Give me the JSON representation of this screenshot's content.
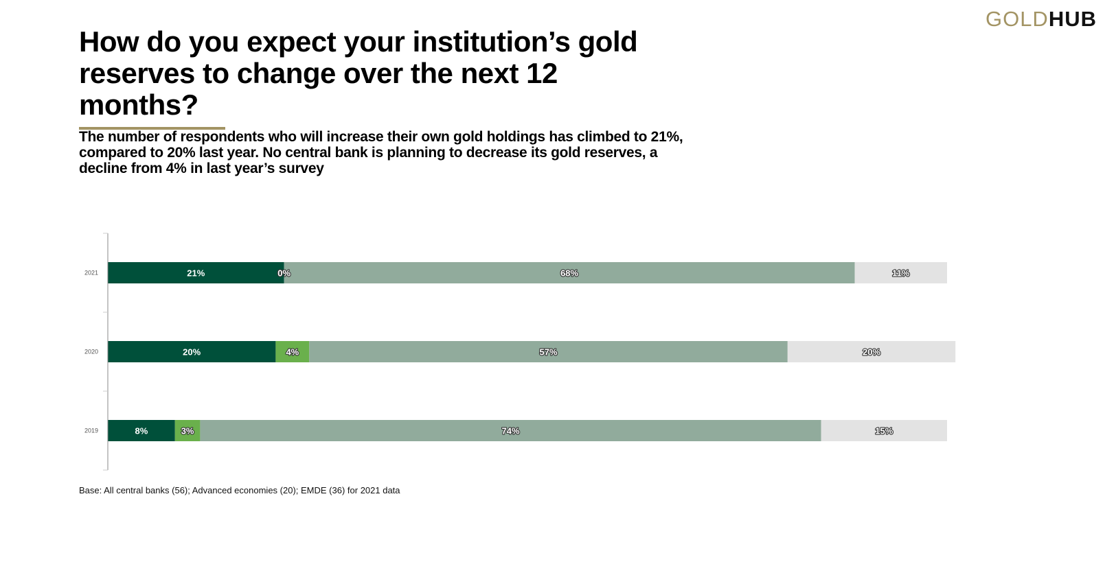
{
  "logo": {
    "gold": "GOLD",
    "hub": "HUB"
  },
  "title": "How do you expect your institution’s gold reserves to change over the next 12 months?",
  "subtitle": "The number of respondents who will increase their own gold holdings has climbed to 21%, compared to 20% last year. No central bank is planning to decrease its gold reserves, a decline from 4% in last year’s survey",
  "footnote": "Base: All central banks (56); Advanced economies (20); EMDE (36) for 2021 data",
  "chart_data": {
    "type": "bar",
    "orientation": "horizontal",
    "stacked": true,
    "categories": [
      "2021",
      "2020",
      "2019"
    ],
    "series": [
      {
        "color": "#00503a",
        "values": [
          21,
          20,
          8
        ],
        "labels": [
          "21%",
          "20%",
          "8%"
        ]
      },
      {
        "color": "#6ab04c",
        "values": [
          0,
          4,
          3
        ],
        "labels": [
          "0%",
          "4%",
          "3%"
        ]
      },
      {
        "color": "#91ab9c",
        "values": [
          68,
          57,
          74
        ],
        "labels": [
          "68%",
          "57%",
          "74%"
        ]
      },
      {
        "color": "#e3e3e3",
        "values": [
          11,
          20,
          15
        ],
        "labels": [
          "11%",
          "20%",
          "15%"
        ]
      }
    ],
    "xlim": [
      0,
      100
    ],
    "grid": false,
    "legend": "none"
  }
}
